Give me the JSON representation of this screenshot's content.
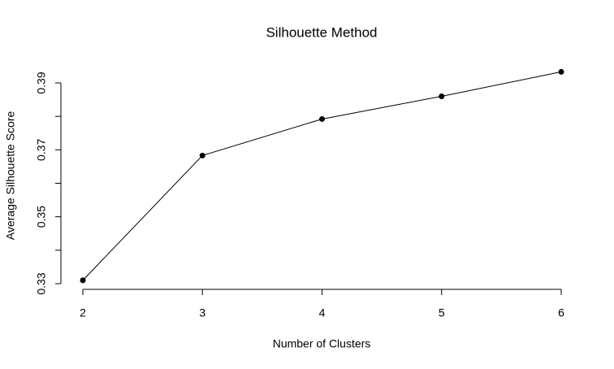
{
  "chart_data": {
    "type": "line",
    "title": "Silhouette Method",
    "x_label": "Number of Clusters",
    "y_label": "Average Silhouette Score",
    "x": [
      2,
      3,
      4,
      5,
      6
    ],
    "y": [
      0.331,
      0.3683,
      0.3792,
      0.386,
      0.3933
    ],
    "color": "#000000",
    "xlim": [
      2,
      6
    ],
    "xticks": [
      2,
      3,
      4,
      5,
      6
    ],
    "ylim": [
      0.33,
      0.39
    ],
    "yticks": [
      0.33,
      0.35,
      0.37,
      0.39
    ],
    "yticks_minor": [
      0.34,
      0.36,
      0.38
    ],
    "grid": false
  }
}
